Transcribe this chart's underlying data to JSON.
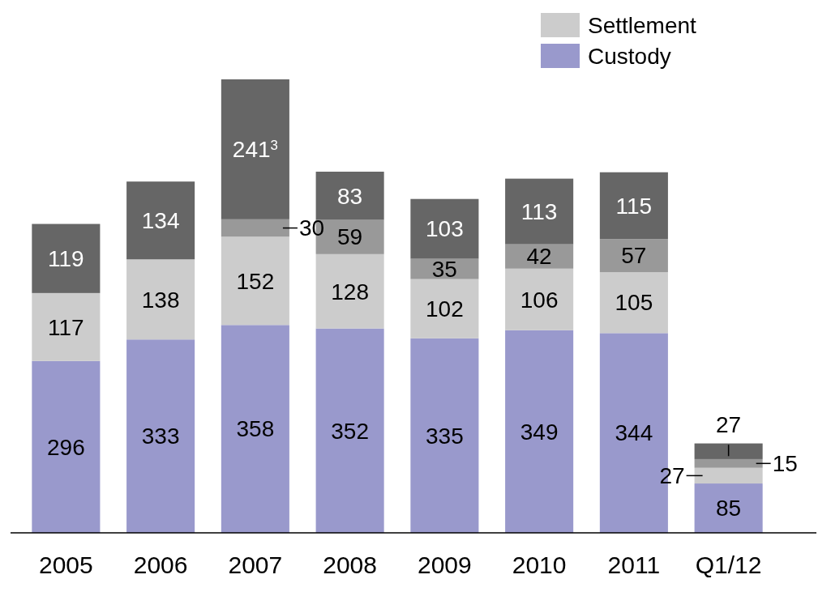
{
  "chart_data": {
    "type": "bar",
    "stacked": true,
    "legend": "top right",
    "categories": [
      "2005",
      "2006",
      "2007",
      "2008",
      "2009",
      "2010",
      "2011",
      "Q1/12"
    ],
    "series": [
      {
        "name": "Custody",
        "color": "#9999cc",
        "values": [
          296,
          333,
          358,
          352,
          335,
          349,
          344,
          85
        ],
        "value_labels": [
          "296",
          "333",
          "358",
          "352",
          "335",
          "349",
          "344",
          "85"
        ]
      },
      {
        "name": "Settlement",
        "color": "#cccccc",
        "values": [
          117,
          138,
          152,
          128,
          102,
          106,
          105,
          27
        ],
        "value_labels": [
          "117",
          "138",
          "152",
          "128",
          "102",
          "106",
          "105",
          "27"
        ]
      },
      {
        "color": "#999999",
        "values": [
          null,
          null,
          30,
          59,
          35,
          42,
          57,
          15
        ],
        "value_labels": [
          null,
          null,
          "30",
          "59",
          "35",
          "42",
          "57",
          "15"
        ]
      },
      {
        "color": "#666666",
        "values": [
          119,
          134,
          241,
          83,
          103,
          113,
          115,
          27
        ],
        "value_labels": [
          "119",
          "134",
          "241$^{3}$",
          "83",
          "103",
          "113",
          "115",
          "27"
        ]
      }
    ]
  }
}
